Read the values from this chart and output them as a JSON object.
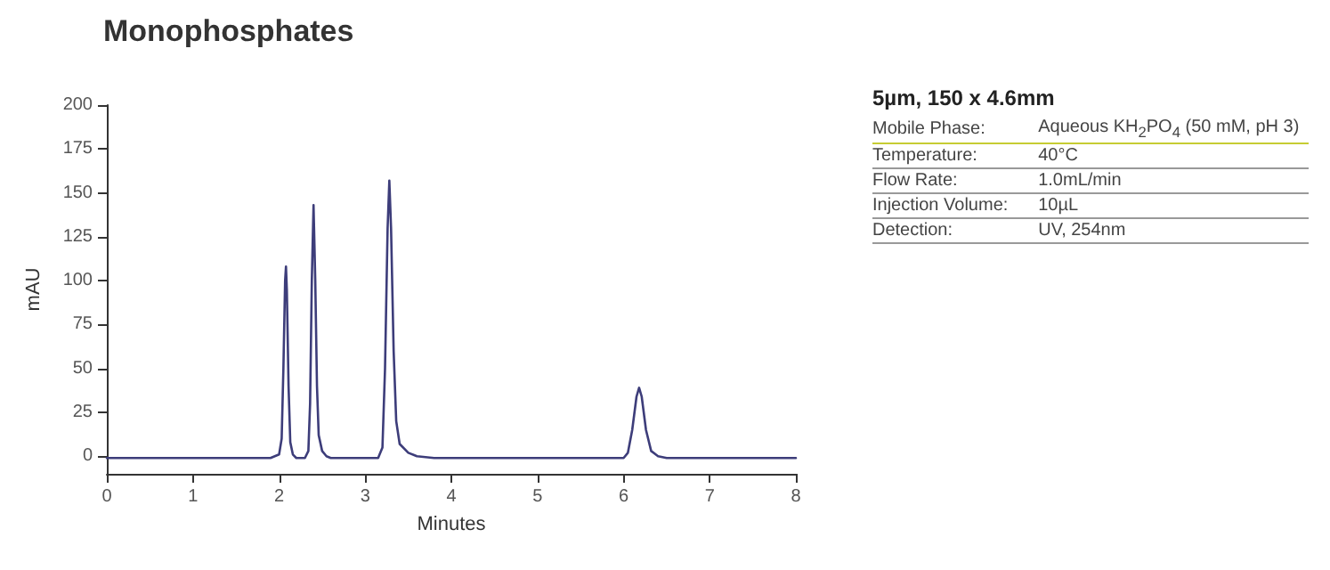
{
  "chart_data": {
    "type": "line",
    "title": "Monophosphates",
    "xlabel": "Minutes",
    "ylabel": "mAU",
    "x": [
      0,
      1,
      1.9,
      1.95,
      2.0,
      2.03,
      2.05,
      2.07,
      2.08,
      2.09,
      2.11,
      2.13,
      2.16,
      2.2,
      2.3,
      2.34,
      2.36,
      2.38,
      2.4,
      2.42,
      2.44,
      2.46,
      2.5,
      2.55,
      2.6,
      3.15,
      3.2,
      3.23,
      3.26,
      3.28,
      3.3,
      3.33,
      3.36,
      3.4,
      3.5,
      3.6,
      3.8,
      4.5,
      5,
      6.0,
      6.05,
      6.1,
      6.15,
      6.18,
      6.21,
      6.26,
      6.32,
      6.4,
      6.5,
      7,
      8
    ],
    "series": [
      {
        "color": "#3d3d7a",
        "values": [
          -1,
          -1,
          -1,
          0,
          1,
          10,
          50,
          100,
          108,
          95,
          40,
          8,
          1,
          -1,
          -1,
          3,
          30,
          100,
          143,
          100,
          40,
          12,
          3,
          0,
          -1,
          -1,
          5,
          50,
          130,
          157,
          130,
          60,
          20,
          7,
          2,
          0,
          -1,
          -1,
          -1,
          -1,
          2,
          15,
          34,
          39,
          34,
          15,
          3,
          0,
          -1,
          -1,
          -1
        ]
      }
    ],
    "xlim": [
      0,
      8
    ],
    "xticks": [
      0,
      1,
      2,
      3,
      4,
      5,
      6,
      7,
      8
    ],
    "ylim": [
      -10,
      200
    ],
    "yticks": [
      0,
      25,
      50,
      75,
      100,
      125,
      150,
      175,
      200
    ],
    "grid": false,
    "marker": "none",
    "line_style": "solid",
    "annotations": [
      "5µm, 150 x 4.6mm",
      "Mobile Phase:",
      "Aqueous KH$_{2}$PO$_{4}$ (50 mM, pH 3)",
      "Temperature:",
      "40°C",
      "Flow Rate:",
      "1.0mL/min",
      "Injection Volume:",
      "10µL",
      "Detection:",
      "UV, 254nm"
    ]
  }
}
